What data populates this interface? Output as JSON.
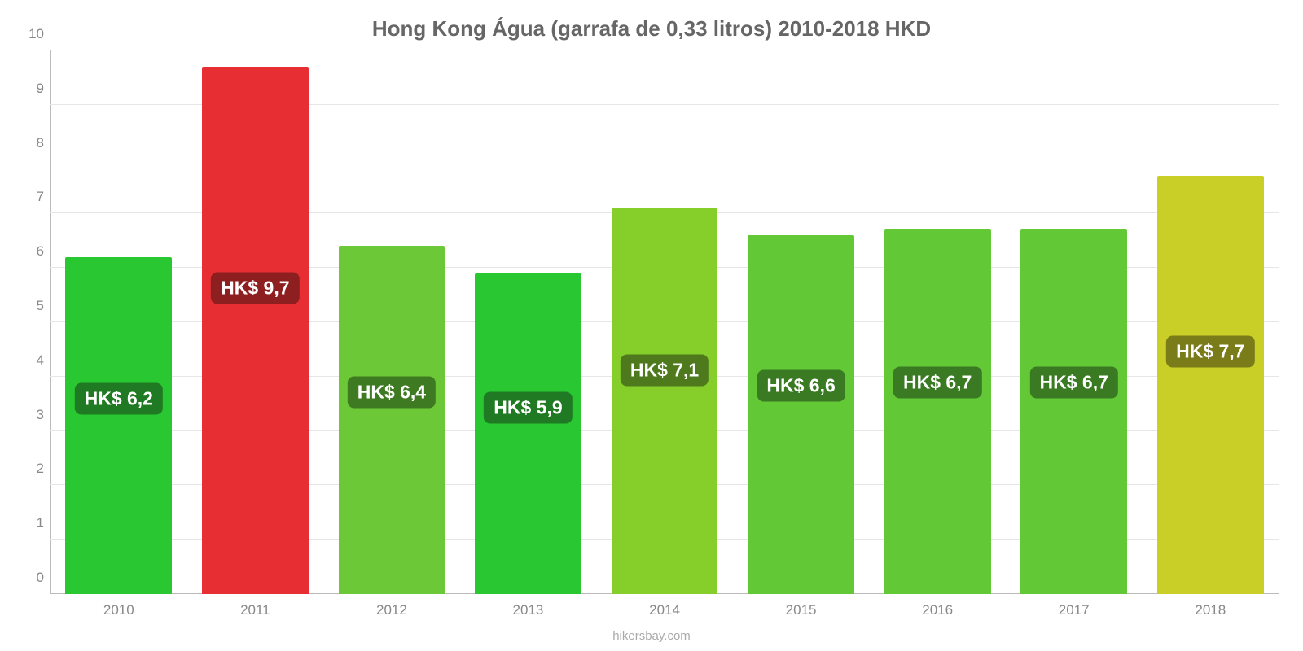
{
  "chart": {
    "type": "bar",
    "title": "Hong Kong Água (garrafa de 0,33 litros) 2010-2018 HKD",
    "title_fontsize": 26,
    "title_color": "#666666",
    "source_text": "hikersbay.com",
    "source_color": "#aaaaaa",
    "background_color": "#ffffff",
    "grid_color": "#e6e6e6",
    "axis_color": "#bbbbbb",
    "axis_label_color": "#888888",
    "axis_label_fontsize": 17,
    "ylim": [
      0,
      10
    ],
    "ytick_step": 1,
    "yticks": [
      0,
      1,
      2,
      3,
      4,
      5,
      6,
      7,
      8,
      9,
      10
    ],
    "categories": [
      "2010",
      "2011",
      "2012",
      "2013",
      "2014",
      "2015",
      "2016",
      "2017",
      "2018"
    ],
    "values": [
      6.2,
      9.7,
      6.4,
      5.9,
      7.1,
      6.6,
      6.7,
      6.7,
      7.7
    ],
    "value_labels": [
      "HK$ 6,2",
      "HK$ 9,7",
      "HK$ 6,4",
      "HK$ 5,9",
      "HK$ 7,1",
      "HK$ 6,6",
      "HK$ 6,7",
      "HK$ 6,7",
      "HK$ 7,7"
    ],
    "bar_colors": [
      "#29c832",
      "#e72f33",
      "#6cc837",
      "#29c832",
      "#86cf2b",
      "#62c836",
      "#62c836",
      "#62c836",
      "#c9cf27"
    ],
    "badge_bg_colors": [
      "#1f7a23",
      "#8e1f21",
      "#3e7a22",
      "#1f7a23",
      "#4e7a1d",
      "#3a7a22",
      "#3a7a22",
      "#3a7a22",
      "#7a7c1a"
    ],
    "badge_text_color": "#ffffff",
    "badge_fontsize": 23,
    "bar_width_pct": 78
  }
}
